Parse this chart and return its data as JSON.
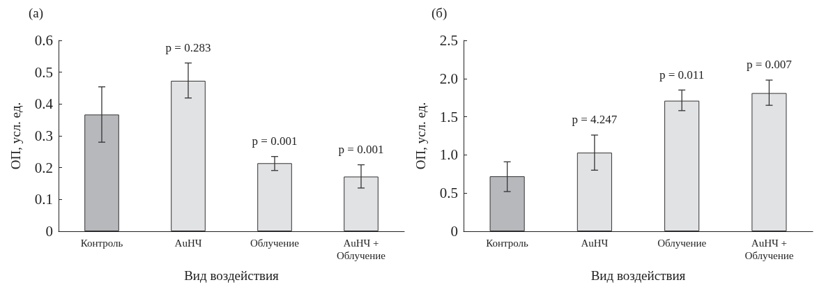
{
  "chart_data": [
    {
      "type": "bar",
      "title": "(a)",
      "xlabel": "Вид воздействия",
      "ylabel": "ОП, усл. ед.",
      "categories": [
        "Контроль",
        "AuНЧ",
        "Облучение",
        "AuНЧ + Облучение"
      ],
      "values": [
        0.367,
        0.473,
        0.214,
        0.172
      ],
      "errors": [
        [
          0.28,
          0.454
        ],
        [
          0.419,
          0.529
        ],
        [
          0.191,
          0.235
        ],
        [
          0.136,
          0.209
        ]
      ],
      "colors": [
        "#b7b8bc",
        "#e1e2e4",
        "#e1e2e4",
        "#e1e2e4"
      ],
      "ylim": [
        0,
        0.6
      ],
      "yticks": [
        0,
        0.1,
        0.2,
        0.3,
        0.4,
        0.5,
        0.6
      ],
      "grid": false,
      "annotations": [
        "p = 0.283",
        "p = 0.001",
        "p = 0.001"
      ]
    },
    {
      "type": "bar",
      "title": "(б)",
      "xlabel": "Вид воздействия",
      "ylabel": "ОП, усл. ед.",
      "categories": [
        "Контроль",
        "AuНЧ",
        "Облучение",
        "AuНЧ + Облучение"
      ],
      "values": [
        0.72,
        1.03,
        1.71,
        1.81
      ],
      "errors": [
        [
          0.52,
          0.91
        ],
        [
          0.8,
          1.26
        ],
        [
          1.58,
          1.85
        ],
        [
          1.65,
          1.98
        ]
      ],
      "colors": [
        "#b7b8bc",
        "#e1e2e4",
        "#e1e2e4",
        "#e1e2e4"
      ],
      "ylim": [
        0,
        2.5
      ],
      "yticks": [
        0,
        0.5,
        {
          "value": 1,
          "label": "1.0"
        },
        1.5,
        {
          "value": 2,
          "label": "2.0"
        },
        2.5
      ],
      "grid": false,
      "annotations": [
        "p = 4.247",
        "p = 0.011",
        "p = 0.007"
      ]
    }
  ]
}
